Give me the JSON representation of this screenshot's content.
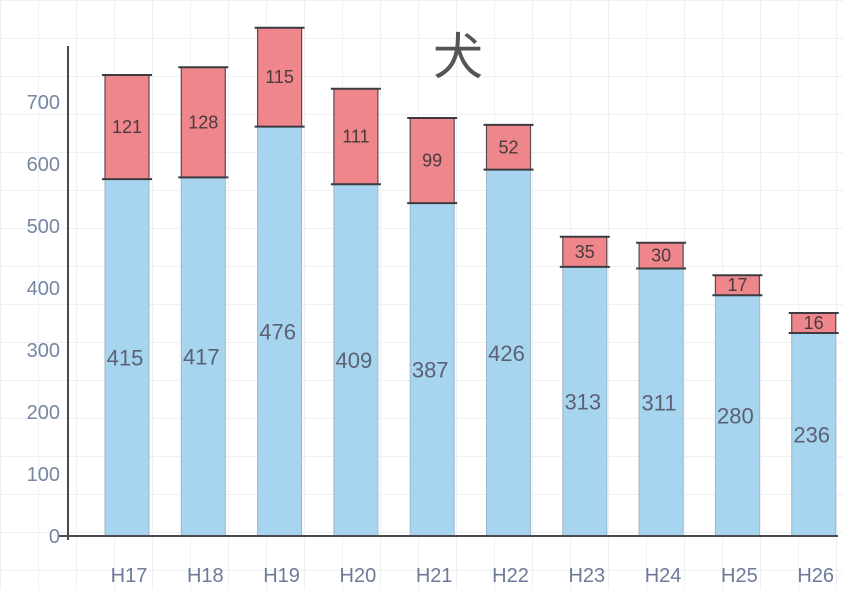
{
  "chart_data": {
    "type": "bar",
    "stacked": true,
    "title": "犬",
    "xlabel": "",
    "ylabel": "",
    "categories": [
      "H17",
      "H18",
      "H19",
      "H20",
      "H21",
      "H22",
      "H23",
      "H24",
      "H25",
      "H26"
    ],
    "series": [
      {
        "values": [
          415,
          417,
          476,
          409,
          387,
          426,
          313,
          311,
          280,
          236
        ],
        "color": "#a7d5f0"
      },
      {
        "values": [
          121,
          128,
          115,
          111,
          99,
          52,
          35,
          30,
          17,
          16
        ],
        "color": "#ee868c"
      }
    ],
    "yticks": [
      0,
      100,
      200,
      300,
      400,
      500,
      600,
      700
    ],
    "ylim": [
      0,
      800
    ],
    "data_labels": true,
    "grid": true,
    "legend": "none"
  }
}
